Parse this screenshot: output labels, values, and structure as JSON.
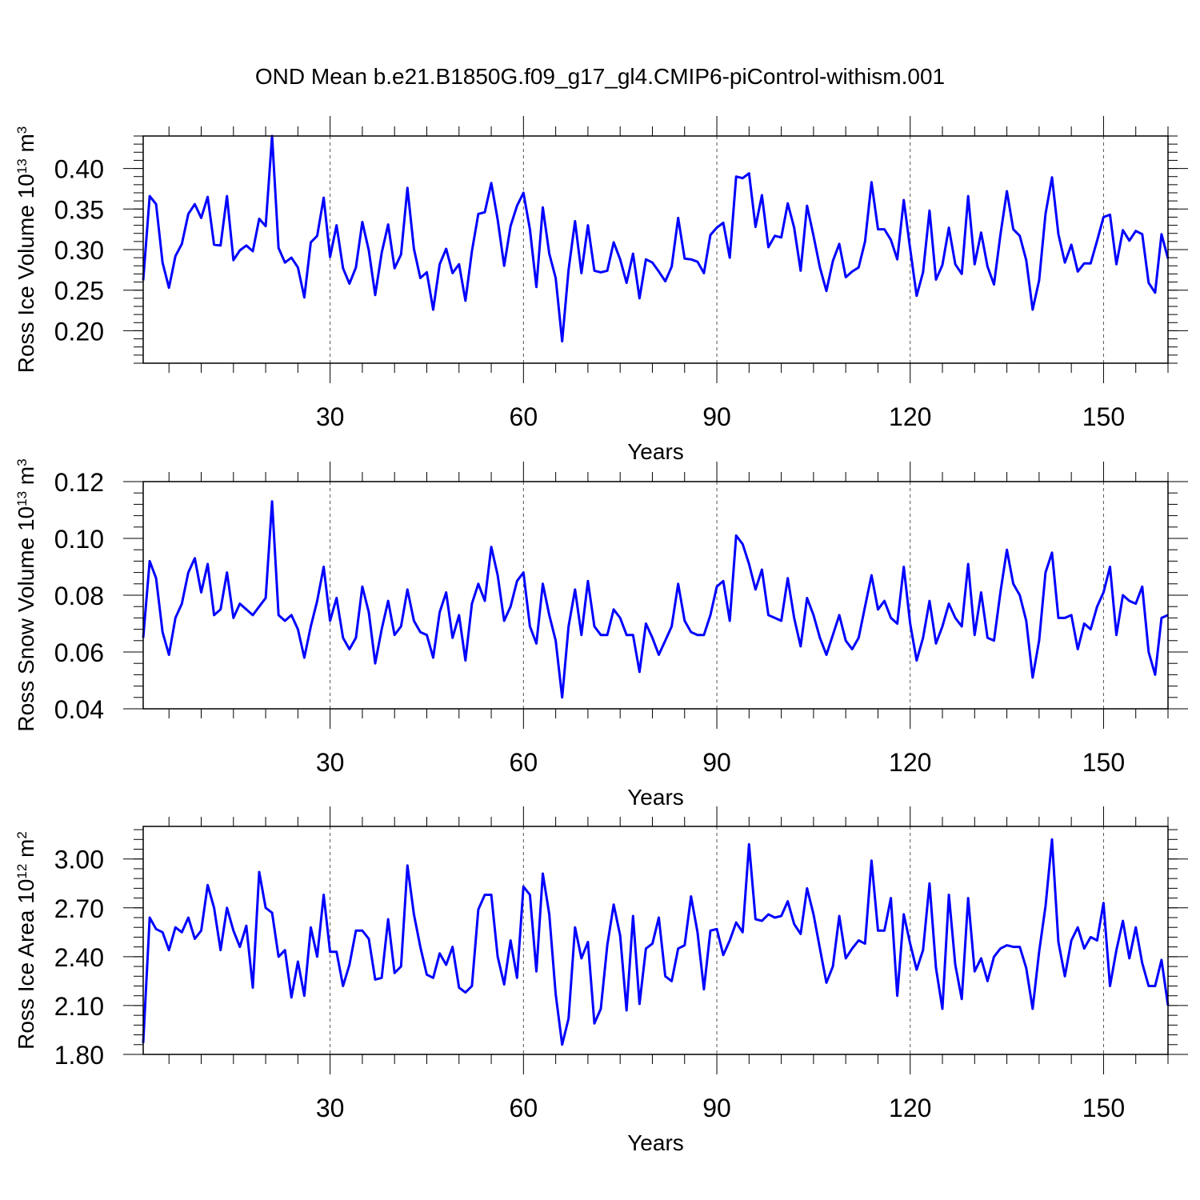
{
  "figure": {
    "title": "OND Mean b.e21.B1850G.f09_g17_gl4.CMIP6-piControl-withism.001"
  },
  "chart_data": [
    {
      "type": "line",
      "ylabel": "Ross Ice Volume 10",
      "ylabel_exp": "13",
      "ylabel_unit": " m",
      "ylabel_unit_exp": "3",
      "xlabel": "Years",
      "xlim": [
        1,
        160
      ],
      "ylim": [
        0.16,
        0.44
      ],
      "xticks": [
        30,
        60,
        90,
        120,
        150
      ],
      "yticks": [
        0.2,
        0.25,
        0.3,
        0.35,
        0.4
      ],
      "ytick_labels": [
        "0.20",
        "0.25",
        "0.30",
        "0.35",
        "0.40"
      ],
      "line_color": "#0000ff",
      "vertical_gridlines": "dashed at x ticks",
      "x_start": 1,
      "values": [
        0.262,
        0.366,
        0.356,
        0.284,
        0.253,
        0.292,
        0.307,
        0.344,
        0.356,
        0.339,
        0.365,
        0.306,
        0.305,
        0.366,
        0.287,
        0.299,
        0.305,
        0.298,
        0.338,
        0.329,
        0.44,
        0.302,
        0.284,
        0.29,
        0.278,
        0.241,
        0.309,
        0.317,
        0.364,
        0.291,
        0.33,
        0.277,
        0.258,
        0.278,
        0.334,
        0.299,
        0.244,
        0.296,
        0.331,
        0.277,
        0.294,
        0.376,
        0.301,
        0.265,
        0.272,
        0.226,
        0.282,
        0.301,
        0.271,
        0.282,
        0.237,
        0.298,
        0.344,
        0.346,
        0.382,
        0.337,
        0.28,
        0.329,
        0.354,
        0.37,
        0.325,
        0.254,
        0.352,
        0.295,
        0.265,
        0.187,
        0.275,
        0.335,
        0.271,
        0.33,
        0.274,
        0.272,
        0.274,
        0.309,
        0.288,
        0.259,
        0.295,
        0.24,
        0.288,
        0.284,
        0.273,
        0.261,
        0.279,
        0.339,
        0.289,
        0.288,
        0.285,
        0.271,
        0.318,
        0.327,
        0.333,
        0.29,
        0.39,
        0.388,
        0.394,
        0.328,
        0.367,
        0.303,
        0.317,
        0.315,
        0.357,
        0.327,
        0.274,
        0.354,
        0.317,
        0.278,
        0.249,
        0.286,
        0.307,
        0.266,
        0.273,
        0.278,
        0.31,
        0.383,
        0.325,
        0.325,
        0.312,
        0.288,
        0.361,
        0.301,
        0.243,
        0.272,
        0.348,
        0.263,
        0.281,
        0.327,
        0.282,
        0.27,
        0.366,
        0.282,
        0.321,
        0.279,
        0.257,
        0.318,
        0.372,
        0.325,
        0.317,
        0.287,
        0.226,
        0.262,
        0.344,
        0.389,
        0.319,
        0.284,
        0.306,
        0.273,
        0.283,
        0.283,
        0.311,
        0.34,
        0.343,
        0.282,
        0.324,
        0.311,
        0.323,
        0.319,
        0.259,
        0.247,
        0.319,
        0.289
      ]
    },
    {
      "type": "line",
      "ylabel": "Ross Snow Volume 10",
      "ylabel_exp": "13",
      "ylabel_unit": " m",
      "ylabel_unit_exp": "3",
      "xlabel": "Years",
      "xlim": [
        1,
        160
      ],
      "ylim": [
        0.04,
        0.12
      ],
      "xticks": [
        30,
        60,
        90,
        120,
        150
      ],
      "yticks": [
        0.04,
        0.06,
        0.08,
        0.1,
        0.12
      ],
      "ytick_labels": [
        "0.04",
        "0.06",
        "0.08",
        "0.10",
        "0.12"
      ],
      "line_color": "#0000ff",
      "vertical_gridlines": "dashed at x ticks",
      "x_start": 1,
      "values": [
        0.065,
        0.092,
        0.086,
        0.067,
        0.059,
        0.072,
        0.077,
        0.088,
        0.093,
        0.081,
        0.091,
        0.073,
        0.075,
        0.088,
        0.072,
        0.077,
        0.075,
        0.073,
        0.076,
        0.079,
        0.113,
        0.073,
        0.071,
        0.073,
        0.068,
        0.058,
        0.069,
        0.078,
        0.09,
        0.071,
        0.079,
        0.065,
        0.061,
        0.065,
        0.083,
        0.074,
        0.056,
        0.068,
        0.078,
        0.066,
        0.069,
        0.082,
        0.071,
        0.067,
        0.066,
        0.058,
        0.074,
        0.081,
        0.065,
        0.073,
        0.057,
        0.077,
        0.084,
        0.078,
        0.097,
        0.087,
        0.071,
        0.076,
        0.085,
        0.088,
        0.069,
        0.063,
        0.084,
        0.073,
        0.064,
        0.044,
        0.069,
        0.082,
        0.066,
        0.085,
        0.069,
        0.066,
        0.066,
        0.075,
        0.072,
        0.066,
        0.066,
        0.053,
        0.07,
        0.065,
        0.059,
        0.064,
        0.069,
        0.084,
        0.071,
        0.067,
        0.066,
        0.066,
        0.073,
        0.083,
        0.085,
        0.071,
        0.101,
        0.098,
        0.091,
        0.082,
        0.089,
        0.073,
        0.072,
        0.071,
        0.086,
        0.072,
        0.062,
        0.079,
        0.073,
        0.065,
        0.059,
        0.066,
        0.073,
        0.064,
        0.061,
        0.065,
        0.076,
        0.087,
        0.075,
        0.078,
        0.072,
        0.07,
        0.09,
        0.07,
        0.057,
        0.065,
        0.078,
        0.063,
        0.069,
        0.077,
        0.072,
        0.069,
        0.091,
        0.066,
        0.081,
        0.065,
        0.064,
        0.081,
        0.096,
        0.084,
        0.08,
        0.071,
        0.051,
        0.064,
        0.088,
        0.095,
        0.072,
        0.072,
        0.073,
        0.061,
        0.07,
        0.068,
        0.076,
        0.081,
        0.09,
        0.066,
        0.08,
        0.078,
        0.077,
        0.083,
        0.06,
        0.052,
        0.072,
        0.073
      ]
    },
    {
      "type": "line",
      "ylabel": "Ross Ice Area 10",
      "ylabel_exp": "12",
      "ylabel_unit": " m",
      "ylabel_unit_exp": "2",
      "xlabel": "Years",
      "xlim": [
        1,
        160
      ],
      "ylim": [
        1.8,
        3.2
      ],
      "xticks": [
        30,
        60,
        90,
        120,
        150
      ],
      "yticks": [
        1.8,
        2.1,
        2.4,
        2.7,
        3.0
      ],
      "ytick_labels": [
        "1.80",
        "2.10",
        "2.40",
        "2.70",
        "3.00"
      ],
      "line_color": "#0000ff",
      "vertical_gridlines": "dashed at x ticks",
      "x_start": 1,
      "values": [
        1.87,
        2.64,
        2.57,
        2.55,
        2.44,
        2.58,
        2.55,
        2.64,
        2.51,
        2.56,
        2.84,
        2.7,
        2.44,
        2.7,
        2.56,
        2.46,
        2.59,
        2.21,
        2.92,
        2.7,
        2.67,
        2.4,
        2.44,
        2.15,
        2.37,
        2.16,
        2.58,
        2.4,
        2.78,
        2.43,
        2.43,
        2.22,
        2.35,
        2.56,
        2.56,
        2.51,
        2.26,
        2.27,
        2.63,
        2.3,
        2.34,
        2.96,
        2.66,
        2.46,
        2.29,
        2.27,
        2.42,
        2.35,
        2.46,
        2.21,
        2.18,
        2.22,
        2.69,
        2.78,
        2.78,
        2.4,
        2.23,
        2.5,
        2.27,
        2.83,
        2.78,
        2.31,
        2.91,
        2.66,
        2.17,
        1.86,
        2.02,
        2.58,
        2.39,
        2.49,
        1.99,
        2.08,
        2.47,
        2.72,
        2.53,
        2.07,
        2.65,
        2.11,
        2.45,
        2.48,
        2.64,
        2.28,
        2.25,
        2.45,
        2.47,
        2.77,
        2.55,
        2.2,
        2.56,
        2.57,
        2.41,
        2.5,
        2.61,
        2.55,
        3.09,
        2.63,
        2.62,
        2.66,
        2.64,
        2.65,
        2.74,
        2.6,
        2.54,
        2.82,
        2.66,
        2.45,
        2.24,
        2.34,
        2.65,
        2.39,
        2.45,
        2.5,
        2.48,
        2.99,
        2.56,
        2.56,
        2.76,
        2.16,
        2.66,
        2.48,
        2.32,
        2.44,
        2.85,
        2.33,
        2.08,
        2.78,
        2.35,
        2.14,
        2.76,
        2.31,
        2.39,
        2.25,
        2.4,
        2.45,
        2.47,
        2.46,
        2.46,
        2.33,
        2.08,
        2.43,
        2.71,
        3.12,
        2.49,
        2.28,
        2.5,
        2.58,
        2.45,
        2.52,
        2.5,
        2.73,
        2.22,
        2.44,
        2.62,
        2.39,
        2.58,
        2.36,
        2.22,
        2.22,
        2.38,
        2.1
      ]
    }
  ]
}
